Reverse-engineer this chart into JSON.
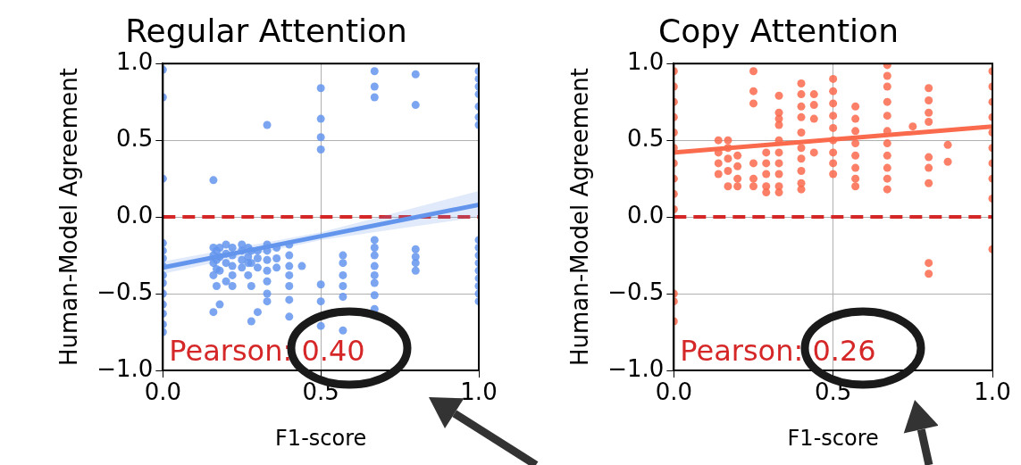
{
  "chart_data": [
    {
      "type": "scatter",
      "title": "Regular Attention",
      "xlabel": "F1-score",
      "ylabel": "Human-Model Agreement",
      "xlim": [
        0,
        1
      ],
      "ylim": [
        -1,
        1
      ],
      "xticks": [
        {
          "value": 0,
          "label": "0.0"
        },
        {
          "value": 0.5,
          "label": "0.5"
        },
        {
          "value": 1,
          "label": "1.0"
        }
      ],
      "yticks": [
        {
          "value": -1,
          "label": "−1.0"
        },
        {
          "value": -0.5,
          "label": "−0.5"
        },
        {
          "value": 0,
          "label": "0.0"
        },
        {
          "value": 0.5,
          "label": "0.5"
        },
        {
          "value": 1,
          "label": "1.0"
        }
      ],
      "grid": true,
      "legend": false,
      "series": [
        {
          "marker": "circle",
          "color": "#6495ed",
          "x": [
            0,
            0,
            0,
            0,
            0,
            0,
            0,
            0,
            0,
            0,
            0,
            0,
            0,
            0,
            0.16,
            0.16,
            0.16,
            0.16,
            0.16,
            0.16,
            0.17,
            0.17,
            0.17,
            0.17,
            0.18,
            0.18,
            0.18,
            0.18,
            0.2,
            0.2,
            0.2,
            0.2,
            0.22,
            0.22,
            0.22,
            0.22,
            0.22,
            0.25,
            0.25,
            0.25,
            0.25,
            0.27,
            0.27,
            0.27,
            0.27,
            0.28,
            0.28,
            0.28,
            0.28,
            0.3,
            0.3,
            0.3,
            0.3,
            0.33,
            0.33,
            0.33,
            0.33,
            0.33,
            0.33,
            0.33,
            0.33,
            0.36,
            0.36,
            0.36,
            0.4,
            0.4,
            0.4,
            0.4,
            0.4,
            0.4,
            0.4,
            0.44,
            0.5,
            0.5,
            0.5,
            0.5,
            0.5,
            0.5,
            0.5,
            0.57,
            0.57,
            0.57,
            0.57,
            0.57,
            0.57,
            0.67,
            0.67,
            0.67,
            0.67,
            0.67,
            0.67,
            0.67,
            0.67,
            0.67,
            0.67,
            0.67,
            0.8,
            0.8,
            0.8,
            0.8,
            0.8,
            0.8,
            1,
            1,
            1,
            1,
            1,
            1,
            1,
            1,
            1,
            1,
            1,
            1,
            1,
            1,
            1,
            1
          ],
          "values": [
            0.96,
            0.78,
            0.25,
            -0.17,
            -0.22,
            -0.27,
            -0.32,
            -0.38,
            -0.43,
            -0.5,
            -0.57,
            -0.63,
            -0.7,
            -0.75,
            0.24,
            -0.2,
            -0.25,
            -0.3,
            -0.38,
            -0.62,
            -0.22,
            -0.28,
            -0.34,
            -0.45,
            -0.2,
            -0.26,
            -0.35,
            -0.57,
            -0.18,
            -0.24,
            -0.3,
            -0.42,
            -0.2,
            -0.25,
            -0.32,
            -0.38,
            -0.45,
            -0.18,
            -0.22,
            -0.28,
            -0.33,
            -0.2,
            -0.26,
            -0.3,
            -0.38,
            -0.22,
            -0.3,
            -0.45,
            -0.68,
            -0.22,
            -0.27,
            -0.33,
            -0.62,
            0.6,
            -0.18,
            -0.22,
            -0.28,
            -0.35,
            -0.42,
            -0.5,
            -0.55,
            -0.2,
            -0.27,
            -0.33,
            -0.18,
            -0.25,
            -0.32,
            -0.38,
            -0.45,
            -0.54,
            -0.65,
            -0.32,
            0.84,
            0.64,
            0.52,
            0.44,
            -0.44,
            -0.55,
            -0.71,
            -0.25,
            -0.3,
            -0.38,
            -0.45,
            -0.52,
            -0.74,
            0.95,
            0.85,
            0.78,
            -0.15,
            -0.2,
            -0.25,
            -0.32,
            -0.38,
            -0.43,
            -0.51,
            -0.6,
            0.93,
            0.73,
            -0.21,
            -0.26,
            -0.3,
            -0.35,
            0.95,
            0.9,
            0.85,
            0.8,
            0.72,
            0.65,
            0.6,
            -0.15,
            -0.2,
            -0.25,
            -0.3,
            -0.35,
            -0.4,
            -0.45,
            -0.5,
            -0.55
          ]
        },
        {
          "type": "line",
          "color": "#6495ed",
          "x": [
            0,
            0.5,
            1
          ],
          "values": [
            -0.33,
            -0.125,
            0.08
          ],
          "lower": [
            -0.37,
            -0.15,
            0.0
          ],
          "upper": [
            -0.29,
            -0.1,
            0.17
          ]
        }
      ],
      "ref_lines": [
        {
          "axis": "y",
          "value": 0,
          "color": "#d62728",
          "line_style": "dashed"
        }
      ],
      "annotations": [
        "Pearson: 0.40"
      ]
    },
    {
      "type": "scatter",
      "title": "Copy Attention",
      "xlabel": "F1-score",
      "ylabel": "Human-Model Agreement",
      "xlim": [
        0,
        1
      ],
      "ylim": [
        -1,
        1
      ],
      "xticks": [
        {
          "value": 0,
          "label": "0.0"
        },
        {
          "value": 0.5,
          "label": "0.5"
        },
        {
          "value": 1,
          "label": "1.0"
        }
      ],
      "yticks": [
        {
          "value": -1,
          "label": "−1.0"
        },
        {
          "value": -0.5,
          "label": "−0.5"
        },
        {
          "value": 0,
          "label": "0.0"
        },
        {
          "value": 0.5,
          "label": "0.5"
        },
        {
          "value": 1,
          "label": "1.0"
        }
      ],
      "grid": true,
      "legend": false,
      "series": [
        {
          "marker": "circle",
          "color": "#fa6a4c",
          "x": [
            0,
            0,
            0,
            0,
            0,
            0,
            0,
            0,
            0,
            0,
            0,
            0,
            0,
            0.14,
            0.14,
            0.14,
            0.14,
            0.17,
            0.17,
            0.17,
            0.17,
            0.17,
            0.2,
            0.2,
            0.2,
            0.2,
            0.25,
            0.25,
            0.25,
            0.25,
            0.25,
            0.25,
            0.29,
            0.29,
            0.29,
            0.29,
            0.29,
            0.33,
            0.33,
            0.33,
            0.33,
            0.33,
            0.33,
            0.33,
            0.33,
            0.33,
            0.33,
            0.4,
            0.4,
            0.4,
            0.4,
            0.4,
            0.4,
            0.4,
            0.4,
            0.4,
            0.4,
            0.44,
            0.44,
            0.44,
            0.44,
            0.5,
            0.5,
            0.5,
            0.5,
            0.5,
            0.5,
            0.5,
            0.5,
            0.5,
            0.57,
            0.57,
            0.57,
            0.57,
            0.57,
            0.57,
            0.57,
            0.57,
            0.67,
            0.67,
            0.67,
            0.67,
            0.67,
            0.67,
            0.67,
            0.67,
            0.67,
            0.67,
            0.67,
            0.75,
            0.8,
            0.8,
            0.8,
            0.8,
            0.8,
            0.8,
            0.8,
            0.8,
            0.8,
            0.86,
            0.86,
            1,
            1,
            1,
            1,
            1,
            1,
            1,
            1,
            1,
            1
          ],
          "values": [
            0.95,
            0.85,
            0.75,
            0.65,
            0.55,
            0.45,
            0.35,
            0.25,
            0.15,
            0.05,
            -0.5,
            -0.55,
            -0.68,
            0.5,
            0.42,
            0.35,
            0.28,
            0.5,
            0.45,
            0.38,
            0.3,
            0.2,
            0.4,
            0.33,
            0.25,
            0.2,
            0.95,
            0.82,
            0.74,
            0.35,
            0.25,
            0.2,
            0.42,
            0.35,
            0.28,
            0.2,
            0.16,
            0.79,
            0.68,
            0.64,
            0.6,
            0.5,
            0.42,
            0.35,
            0.28,
            0.2,
            0.16,
            0.87,
            0.8,
            0.72,
            0.65,
            0.55,
            0.45,
            0.38,
            0.3,
            0.22,
            0.18,
            0.8,
            0.73,
            0.64,
            0.42,
            0.9,
            0.82,
            0.74,
            0.66,
            0.58,
            0.5,
            0.42,
            0.35,
            0.28,
            0.72,
            0.64,
            0.56,
            0.48,
            0.4,
            0.32,
            0.25,
            0.2,
            0.99,
            0.92,
            0.85,
            0.75,
            0.66,
            0.56,
            0.48,
            0.4,
            0.32,
            0.25,
            0.18,
            0.59,
            0.84,
            0.76,
            0.68,
            0.62,
            0.39,
            0.32,
            0.22,
            -0.3,
            -0.37,
            0.47,
            0.36,
            0.95,
            0.85,
            0.75,
            0.65,
            0.55,
            0.45,
            0.35,
            0.25,
            0.12,
            -0.21
          ]
        },
        {
          "type": "line",
          "color": "#fa6a4c",
          "x": [
            0,
            1
          ],
          "values": [
            0.42,
            0.59
          ]
        }
      ],
      "ref_lines": [
        {
          "axis": "y",
          "value": 0,
          "color": "#d62728",
          "line_style": "dashed"
        }
      ],
      "annotations": [
        "Pearson: 0.26"
      ]
    }
  ]
}
